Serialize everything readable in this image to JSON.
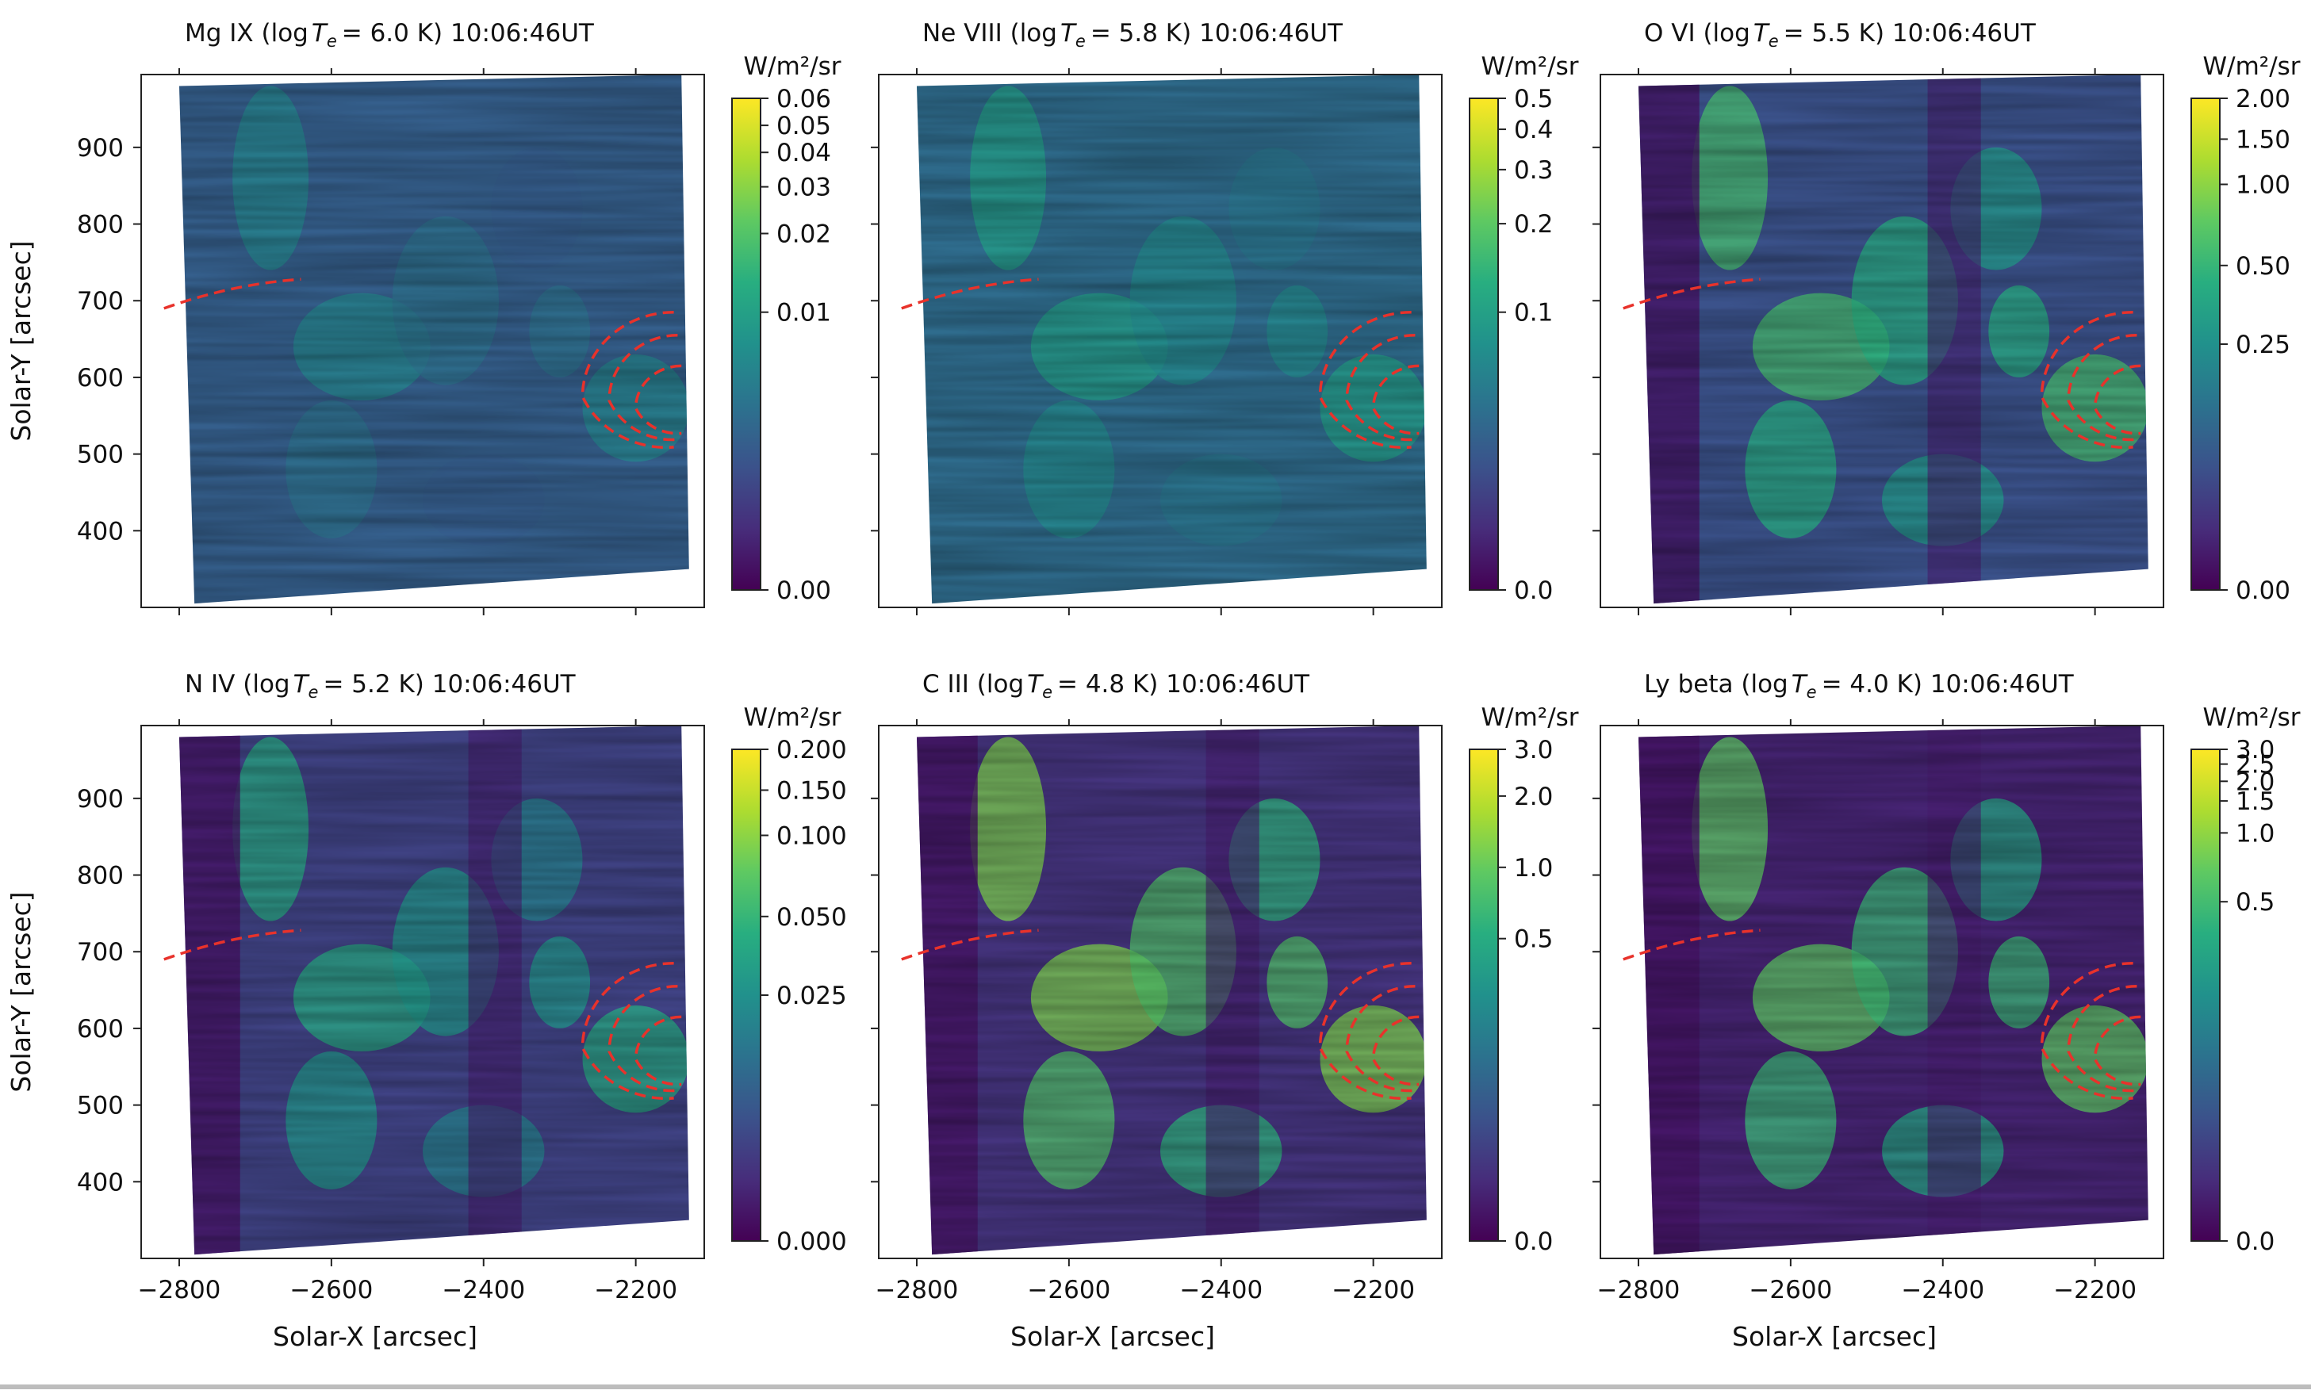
{
  "figure": {
    "colormap": [
      "#440154",
      "#472d7b",
      "#3b528b",
      "#2c728e",
      "#21918c",
      "#28ae80",
      "#5ec962",
      "#addc30",
      "#fde725"
    ],
    "overlay_color": "#e8322b",
    "x_tick_labels": [
      "−2800",
      "−2600",
      "−2400",
      "−2200"
    ],
    "y_tick_labels": [
      "900",
      "800",
      "700",
      "600",
      "500",
      "400"
    ]
  },
  "chart_data": [
    {
      "type": "heatmap",
      "title_prefix": "Mg IX (log",
      "title_temp": "=  6.0  K) 10:06:46UT",
      "ylabel": "Solar-Y [arcsec]",
      "xlabel": "",
      "xlim": [
        -2850,
        -2110
      ],
      "ylim": [
        300,
        995
      ],
      "x_ticks": [
        -2800,
        -2600,
        -2400,
        -2200
      ],
      "y_ticks": [
        900,
        800,
        700,
        600,
        500,
        400
      ],
      "colorbar": {
        "unit": "W/m²/sr",
        "ticks": [
          "0.06",
          "0.05",
          "0.04",
          "0.03",
          "0.02",
          "0.01",
          "0.00"
        ],
        "tick_fracs": [
          1.0,
          0.945,
          0.89,
          0.82,
          0.725,
          0.565,
          0.0
        ]
      }
    },
    {
      "type": "heatmap",
      "title_prefix": "Ne VIII (log",
      "title_temp": "=  5.8  K) 10:06:46UT",
      "ylabel": "",
      "xlabel": "",
      "xlim": [
        -2850,
        -2110
      ],
      "ylim": [
        300,
        995
      ],
      "x_ticks": [
        -2800,
        -2600,
        -2400,
        -2200
      ],
      "y_ticks": [
        900,
        800,
        700,
        600,
        500,
        400
      ],
      "colorbar": {
        "unit": "W/m²/sr",
        "ticks": [
          "0.5",
          "0.4",
          "0.3",
          "0.2",
          "0.1",
          "0.0"
        ],
        "tick_fracs": [
          1.0,
          0.937,
          0.855,
          0.745,
          0.565,
          0.0
        ]
      }
    },
    {
      "type": "heatmap",
      "title_prefix": "O VI (log",
      "title_temp": "=  5.5  K) 10:06:46UT",
      "ylabel": "",
      "xlabel": "",
      "xlim": [
        -2850,
        -2110
      ],
      "ylim": [
        300,
        995
      ],
      "x_ticks": [
        -2800,
        -2600,
        -2400,
        -2200
      ],
      "y_ticks": [
        900,
        800,
        700,
        600,
        500,
        400
      ],
      "colorbar": {
        "unit": "W/m²/sr",
        "ticks": [
          "2.00",
          "1.50",
          "1.00",
          "0.50",
          "0.25",
          "0.00"
        ],
        "tick_fracs": [
          1.0,
          0.917,
          0.825,
          0.66,
          0.5,
          0.0
        ]
      }
    },
    {
      "type": "heatmap",
      "title_prefix": "N IV (log",
      "title_temp": "=  5.2  K) 10:06:46UT",
      "ylabel": "Solar-Y [arcsec]",
      "xlabel": "Solar-X [arcsec]",
      "xlim": [
        -2850,
        -2110
      ],
      "ylim": [
        300,
        995
      ],
      "x_ticks": [
        -2800,
        -2600,
        -2400,
        -2200
      ],
      "y_ticks": [
        900,
        800,
        700,
        600,
        500,
        400
      ],
      "colorbar": {
        "unit": "W/m²/sr",
        "ticks": [
          "0.200",
          "0.150",
          "0.100",
          "0.050",
          "0.025",
          "0.000"
        ],
        "tick_fracs": [
          1.0,
          0.917,
          0.825,
          0.66,
          0.5,
          0.0
        ]
      }
    },
    {
      "type": "heatmap",
      "title_prefix": "C III (log",
      "title_temp": "=  4.8  K) 10:06:46UT",
      "ylabel": "",
      "xlabel": "Solar-X [arcsec]",
      "xlim": [
        -2850,
        -2110
      ],
      "ylim": [
        300,
        995
      ],
      "x_ticks": [
        -2800,
        -2600,
        -2400,
        -2200
      ],
      "y_ticks": [
        900,
        800,
        700,
        600,
        500,
        400
      ],
      "colorbar": {
        "unit": "W/m²/sr",
        "ticks": [
          "3.0",
          "2.0",
          "1.0",
          "0.5",
          "0.0"
        ],
        "tick_fracs": [
          1.0,
          0.905,
          0.76,
          0.615,
          0.0
        ]
      }
    },
    {
      "type": "heatmap",
      "title_prefix": "Ly beta (log",
      "title_temp": "=  4.0  K) 10:06:46UT",
      "ylabel": "",
      "xlabel": "Solar-X [arcsec]",
      "xlim": [
        -2850,
        -2110
      ],
      "ylim": [
        300,
        995
      ],
      "x_ticks": [
        -2800,
        -2600,
        -2400,
        -2200
      ],
      "y_ticks": [
        900,
        800,
        700,
        600,
        500,
        400
      ],
      "colorbar": {
        "unit": "W/m²/sr",
        "ticks": [
          "3.0",
          "2.5",
          "2.0",
          "1.5",
          "1.0",
          "0.5",
          "0.0"
        ],
        "tick_fracs": [
          1.0,
          0.97,
          0.935,
          0.895,
          0.83,
          0.69,
          0.0
        ]
      }
    }
  ]
}
